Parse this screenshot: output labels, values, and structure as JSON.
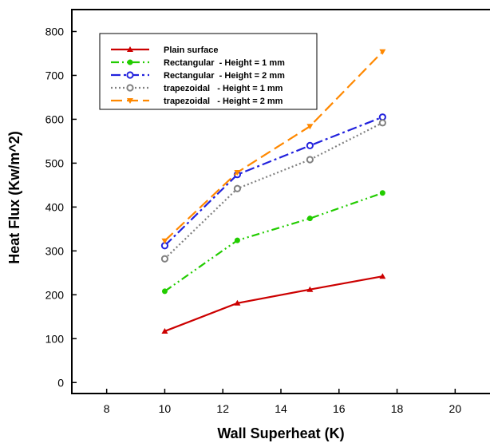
{
  "chart_data": {
    "type": "line",
    "title": "",
    "xlabel": "Wall Superheat (K)",
    "ylabel": "Heat Flux (Kw/m^2)",
    "xlim": [
      6.8,
      21.2
    ],
    "ylim": [
      -25,
      850
    ],
    "xticks": [
      8,
      10,
      12,
      14,
      16,
      18,
      20
    ],
    "yticks": [
      0,
      100,
      200,
      300,
      400,
      500,
      600,
      700,
      800
    ],
    "grid": false,
    "legend_position": "top-left",
    "series": [
      {
        "name": "Plain surface",
        "color": "#cc0000",
        "dash": "solid",
        "marker": "triangle-up",
        "x": [
          10,
          12.5,
          15,
          17.5
        ],
        "y": [
          117,
          181,
          212,
          242
        ]
      },
      {
        "name": "Rectangular  - Height = 1 mm",
        "color": "#22cc00",
        "dash": "dash-dot-dot",
        "marker": "circle",
        "x": [
          10,
          12.5,
          15,
          17.5
        ],
        "y": [
          208,
          324,
          374,
          432
        ]
      },
      {
        "name": "Rectangular  - Height = 2 mm",
        "color": "#2222dd",
        "dash": "dash-dot",
        "marker": "circle-open",
        "x": [
          10,
          12.5,
          15,
          17.5
        ],
        "y": [
          312,
          474,
          540,
          605
        ]
      },
      {
        "name": "trapezoidal   - Height = 1 mm",
        "color": "#808080",
        "dash": "dotted",
        "marker": "circle-open",
        "x": [
          10,
          12.5,
          15,
          17.5
        ],
        "y": [
          282,
          442,
          508,
          592
        ]
      },
      {
        "name": "trapezoidal   - Height = 2 mm",
        "color": "#ff8800",
        "dash": "dashed",
        "marker": "triangle-down",
        "x": [
          10,
          12.5,
          15,
          17.5
        ],
        "y": [
          323,
          479,
          584,
          754
        ]
      }
    ]
  }
}
